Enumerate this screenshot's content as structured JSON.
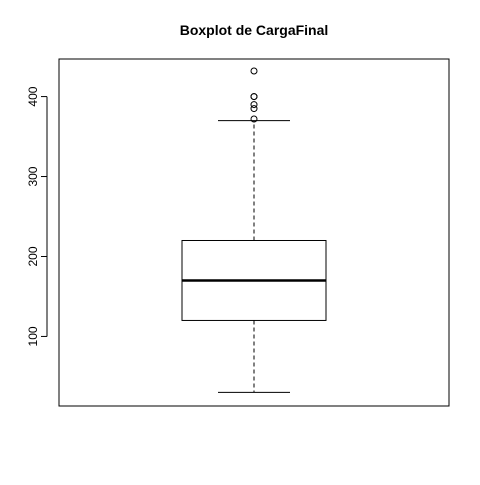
{
  "chart_data": {
    "type": "boxplot",
    "title": "Boxplot de CargaFinal",
    "xlabel": "",
    "ylabel": "",
    "ylim": [
      13,
      447
    ],
    "yticks": [
      100,
      200,
      300,
      400
    ],
    "ytick_labels": [
      "100",
      "200",
      "300",
      "400"
    ],
    "grid": false,
    "legend": "none",
    "series": [
      {
        "whisker_low": 30,
        "q1": 120,
        "median": 170,
        "q3": 220,
        "whisker_high": 370,
        "outliers": [
          372,
          385,
          390,
          400,
          400,
          432
        ]
      }
    ]
  }
}
